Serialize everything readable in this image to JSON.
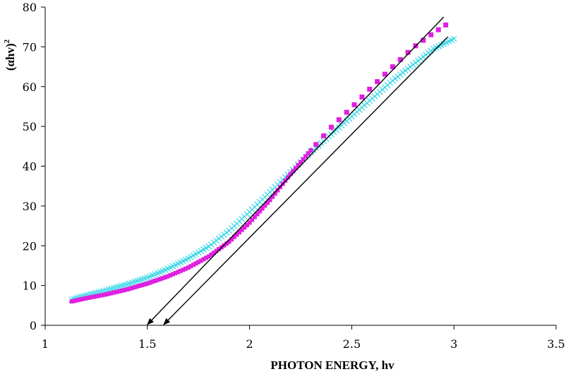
{
  "chart_data": {
    "type": "scatter",
    "title": "",
    "xlabel": "PHOTON ENERGY, hv",
    "ylabel_main": "(αhv)",
    "ylabel_sup": "2",
    "xlim": [
      1,
      3.5
    ],
    "ylim": [
      0,
      80
    ],
    "x_ticks": [
      1,
      1.5,
      2,
      2.5,
      3,
      3.5
    ],
    "x_tick_labels": [
      "1",
      "1.5",
      "2",
      "2.5",
      "3",
      "3.5"
    ],
    "y_ticks": [
      0,
      10,
      20,
      30,
      40,
      50,
      60,
      70,
      80
    ],
    "y_tick_labels": [
      "0",
      "10",
      "20",
      "30",
      "40",
      "50",
      "60",
      "70",
      "80"
    ],
    "grid": false,
    "legend": "none",
    "series": [
      {
        "marker": "square",
        "color": "#e020e0",
        "x": [
          1.13,
          1.2,
          1.3,
          1.4,
          1.5,
          1.6,
          1.7,
          1.8,
          1.9,
          2.0,
          2.1,
          2.2,
          2.3,
          2.4,
          2.5,
          2.6,
          2.7,
          2.8,
          2.9,
          2.96
        ],
        "y": [
          6.0,
          6.8,
          7.8,
          9.0,
          10.5,
          12.3,
          14.5,
          17.3,
          21.0,
          25.8,
          31.5,
          38.0,
          44.0,
          49.8,
          54.8,
          60.0,
          65.0,
          69.8,
          73.5,
          75.5
        ]
      },
      {
        "marker": "x",
        "color": "#40d8e8",
        "x": [
          1.13,
          1.2,
          1.3,
          1.4,
          1.5,
          1.6,
          1.7,
          1.8,
          1.9,
          2.0,
          2.1,
          2.2,
          2.3,
          2.4,
          2.5,
          2.6,
          2.7,
          2.8,
          2.9,
          3.0
        ],
        "y": [
          6.5,
          7.5,
          8.8,
          10.3,
          12.0,
          14.2,
          16.8,
          19.8,
          23.8,
          28.5,
          33.5,
          38.5,
          43.5,
          48.0,
          52.5,
          57.0,
          61.5,
          65.5,
          69.5,
          72.0
        ]
      }
    ],
    "fit_lines": [
      {
        "x1": 1.5,
        "y1": 0,
        "x2": 2.95,
        "y2": 77.5
      },
      {
        "x1": 1.58,
        "y1": 0,
        "x2": 2.97,
        "y2": 72.5
      }
    ]
  }
}
